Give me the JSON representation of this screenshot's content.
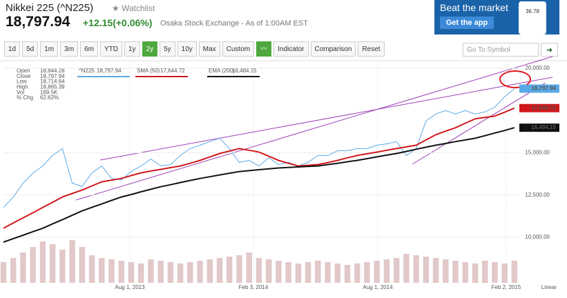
{
  "header": {
    "name": "Nikkei 225 (^N225)",
    "watchlist": "Watchlist",
    "price": "18,797.94",
    "change": "+12.15(+0.06%)",
    "exchange": "Osaka Stock Exchange - As of 1:00AM EST"
  },
  "ad": {
    "title": "Beat the market",
    "button": "Get the app",
    "phone": "36.78"
  },
  "toolbar": {
    "ranges": [
      "1d",
      "5d",
      "1m",
      "3m",
      "6m",
      "YTD",
      "1y",
      "2y",
      "5y",
      "10y",
      "Max",
      "Custom"
    ],
    "active": "2y",
    "buttons": [
      "Indicator",
      "Comparison",
      "Reset"
    ],
    "symbol_placeholder": "Go To Symbol"
  },
  "stats": [
    {
      "label": "Open",
      "value": "18,844.28"
    },
    {
      "label": "Close",
      "value": "18,797.94"
    },
    {
      "label": "Low",
      "value": "18,714.64"
    },
    {
      "label": "High",
      "value": "18,865.39"
    },
    {
      "label": "Vol",
      "value": "169.5K"
    },
    {
      "label": "% Chg",
      "value": "62.62%"
    }
  ],
  "chart_data": {
    "type": "line",
    "scale_label": "Linear",
    "x": [
      0,
      1,
      2,
      3,
      4,
      5,
      6,
      7,
      8,
      9,
      10,
      11,
      12,
      13,
      14,
      15,
      16,
      17,
      18,
      19,
      20,
      21,
      22,
      23,
      24,
      25,
      26,
      27,
      28,
      29,
      30,
      31,
      32,
      33,
      34,
      35,
      36,
      37,
      38,
      39,
      40,
      41,
      42,
      43,
      44,
      45,
      46,
      47,
      48,
      49,
      50,
      51,
      52
    ],
    "xlim": [
      0,
      52.5
    ],
    "xticks": [
      {
        "value": 12.86,
        "label": "Aug 1, 2013"
      },
      {
        "value": 25.44,
        "label": "Feb 3, 2014"
      },
      {
        "value": 38.09,
        "label": "Aug 1, 2014"
      },
      {
        "value": 51.16,
        "label": "Feb 2, 2015"
      }
    ],
    "ylim": [
      7300,
      20370
    ],
    "yticks": [
      {
        "value": 10000,
        "label": "10,000.00"
      },
      {
        "value": 12500,
        "label": "12,500.00"
      },
      {
        "value": 15000,
        "label": "15,000.00"
      },
      {
        "value": 20000,
        "label": "20,000.00"
      }
    ],
    "series": [
      {
        "name": "^N225",
        "color": "#5aa9e6",
        "end_label": "18,797.94",
        "values": [
          11760,
          12380,
          13200,
          13800,
          14220,
          14840,
          15250,
          13200,
          13000,
          13810,
          14220,
          13480,
          13400,
          13890,
          14220,
          14630,
          14220,
          14300,
          14840,
          15250,
          15450,
          15660,
          15860,
          15250,
          14430,
          14550,
          14220,
          14710,
          14300,
          14430,
          14220,
          14430,
          14840,
          14840,
          15120,
          15120,
          15250,
          15250,
          15450,
          15530,
          15660,
          14840,
          15250,
          16880,
          17300,
          17500,
          17300,
          17500,
          17300,
          17420,
          17700,
          18320,
          18797.94
        ]
      },
      {
        "name": "SMA (50)",
        "color": "#d0181c",
        "end_label": "17,644.72",
        "values": [
          10530,
          10840,
          11150,
          11450,
          11760,
          12070,
          12380,
          12590,
          12790,
          13040,
          13280,
          13380,
          13480,
          13650,
          13810,
          13920,
          14020,
          14120,
          14220,
          14380,
          14550,
          14750,
          14960,
          15100,
          15250,
          15150,
          15040,
          14800,
          14550,
          14380,
          14220,
          14260,
          14300,
          14420,
          14550,
          14700,
          14840,
          14940,
          15040,
          15150,
          15250,
          15350,
          15450,
          15760,
          16070,
          16280,
          16480,
          16750,
          17010,
          17090,
          17170,
          17400,
          17644.72
        ]
      },
      {
        "name": "EMA (200)",
        "color": "#111111",
        "end_label": "16,484.15",
        "values": [
          9710,
          9920,
          10120,
          10330,
          10530,
          10790,
          11040,
          11300,
          11560,
          11770,
          11970,
          12180,
          12380,
          12530,
          12690,
          12840,
          12990,
          13110,
          13240,
          13360,
          13480,
          13580,
          13690,
          13790,
          13890,
          13940,
          14000,
          14050,
          14100,
          14130,
          14160,
          14190,
          14220,
          14300,
          14380,
          14470,
          14550,
          14650,
          14760,
          14860,
          14960,
          15080,
          15210,
          15330,
          15450,
          15550,
          15660,
          15760,
          15860,
          16010,
          16170,
          16320,
          16484.15
        ]
      }
    ],
    "volume": {
      "color": "#e2c8c8",
      "vlim": [
        0,
        500
      ],
      "values": [
        150,
        180,
        220,
        260,
        300,
        280,
        240,
        310,
        260,
        200,
        180,
        170,
        160,
        150,
        140,
        170,
        160,
        150,
        140,
        150,
        160,
        170,
        180,
        190,
        200,
        220,
        180,
        170,
        160,
        150,
        140,
        150,
        160,
        150,
        140,
        130,
        140,
        150,
        160,
        170,
        180,
        210,
        200,
        190,
        180,
        170,
        160,
        150,
        140,
        160,
        150,
        140,
        160
      ]
    },
    "grid": true
  }
}
